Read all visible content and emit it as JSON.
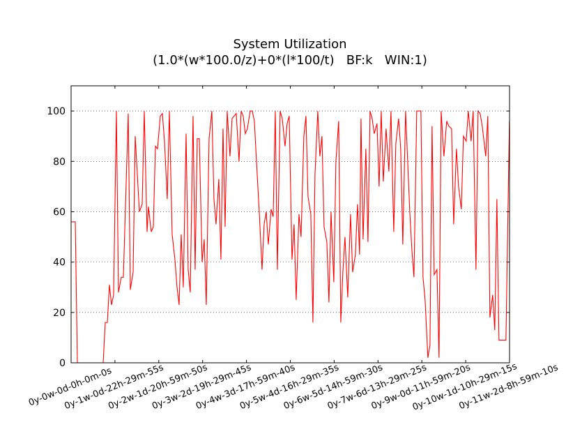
{
  "chart_data": {
    "type": "line",
    "title": "System Utilization",
    "subtitle": "(1.0*(w*100.0/z)+0*(l*100/t)   BF:k   WIN:1)",
    "color": "#ff0000",
    "grid": true,
    "xlim": [
      0,
      6857950
    ],
    "xticks": [
      {
        "value": 0,
        "label": "0y-0w-0d-0h-0m-0s"
      },
      {
        "value": 685795,
        "label": "0y-1w-0d-22h-29m-55s"
      },
      {
        "value": 1371590,
        "label": "0y-2w-1d-20h-59m-50s"
      },
      {
        "value": 2057385,
        "label": "0y-3w-2d-19h-29m-45s"
      },
      {
        "value": 2743180,
        "label": "0y-4w-3d-17h-59m-40s"
      },
      {
        "value": 3428975,
        "label": "0y-5w-4d-16h-29m-35s"
      },
      {
        "value": 4114770,
        "label": "0y-6w-5d-14h-59m-30s"
      },
      {
        "value": 4800565,
        "label": "0y-7w-6d-13h-29m-25s"
      },
      {
        "value": 5486360,
        "label": "0y-9w-0d-11h-59m-20s"
      },
      {
        "value": 6172155,
        "label": "0y-10w-1d-10h-29m-15s"
      },
      {
        "value": 6857950,
        "label": "0y-11w-2d-8h-59m-10s"
      }
    ],
    "ylim": [
      0,
      110
    ],
    "yticks": [
      0,
      20,
      40,
      60,
      80,
      100
    ],
    "x": [
      0,
      65400,
      98100,
      501400,
      534100,
      566800,
      599500,
      632200,
      664900,
      708500,
      741200,
      784800,
      817500,
      893800,
      926500,
      970100,
      1002800,
      1068200,
      1111800,
      1144500,
      1188100,
      1209900,
      1253500,
      1286200,
      1318900,
      1351600,
      1395200,
      1427900,
      1460600,
      1504200,
      1536900,
      1580500,
      1624100,
      1656800,
      1689500,
      1722200,
      1754900,
      1798500,
      1831200,
      1863900,
      1907500,
      1940200,
      1972900,
      2005600,
      2049200,
      2081900,
      2114600,
      2158200,
      2201800,
      2234500,
      2267200,
      2310800,
      2343500,
      2376200,
      2408900,
      2441600,
      2485200,
      2517900,
      2550600,
      2583300,
      2626900,
      2659600,
      2692300,
      2725000,
      2757700,
      2801300,
      2834000,
      2866700,
      2910300,
      2943000,
      2986600,
      3019300,
      3052000,
      3084700,
      3128300,
      3161000,
      3193700,
      3226400,
      3270000,
      3302700,
      3346300,
      3379000,
      3411700,
      3455300,
      3488000,
      3520700,
      3564300,
      3597000,
      3640600,
      3673300,
      3706000,
      3749600,
      3782300,
      3815000,
      3858600,
      3891300,
      3924000,
      3956700,
      4000300,
      4033000,
      4065700,
      4109300,
      4142000,
      4185600,
      4218300,
      4251000,
      4283700,
      4327300,
      4370900,
      4403600,
      4447200,
      4479900,
      4512600,
      4534400,
      4567100,
      4610700,
      4643400,
      4676100,
      4708800,
      4741500,
      4785100,
      4817800,
      4850500,
      4883200,
      4926800,
      4970400,
      5003100,
      5046700,
      5079400,
      5123000,
      5155700,
      5188400,
      5232000,
      5264700,
      5297400,
      5330100,
      5362800,
      5406400,
      5471800,
      5504500,
      5537200,
      5580800,
      5613500,
      5646200,
      5678900,
      5722500,
      5755200,
      5787900,
      5831500,
      5875100,
      5907800,
      5951400,
      5984100,
      6027700,
      6060400,
      6104000,
      6136700,
      6180300,
      6213000,
      6256600,
      6289300,
      6332900,
      6365600,
      6398300,
      6431000,
      6485500,
      6518200,
      6550900,
      6594500,
      6627200,
      6659900,
      6692600,
      6801600,
      6856100
    ],
    "values": [
      56,
      56,
      0,
      0,
      16,
      16,
      31,
      23,
      27,
      100,
      28,
      34,
      34,
      99,
      29,
      36,
      90,
      60,
      63,
      100,
      52,
      62,
      52,
      54,
      86,
      85,
      98,
      99,
      88,
      65,
      100,
      51,
      41,
      30,
      23,
      51,
      30,
      91,
      37,
      28,
      98,
      37,
      89,
      89,
      40,
      49,
      23,
      89,
      100,
      65,
      55,
      73,
      41,
      93,
      54,
      100,
      82,
      97,
      98,
      99,
      80,
      100,
      98,
      91,
      93,
      100,
      100,
      96,
      75,
      60,
      37,
      55,
      60,
      47,
      61,
      58,
      100,
      37,
      100,
      97,
      86,
      95,
      98,
      41,
      55,
      25,
      59,
      50,
      90,
      98,
      66,
      59,
      16,
      75,
      100,
      82,
      90,
      54,
      48,
      24,
      60,
      32,
      80,
      96,
      16,
      36,
      50,
      26,
      59,
      36,
      43,
      63,
      43,
      97,
      49,
      85,
      48,
      100,
      97,
      91,
      95,
      70,
      100,
      72,
      93,
      76,
      100,
      52,
      87,
      97,
      85,
      47,
      100,
      80,
      60,
      45,
      34,
      100,
      100,
      34,
      25,
      2,
      7,
      94,
      35,
      37,
      2,
      100,
      82,
      96,
      94,
      93,
      55,
      85,
      70,
      61,
      90,
      88,
      100,
      88,
      100,
      37,
      100,
      99,
      94,
      82,
      98,
      18,
      27,
      13,
      65,
      9,
      9,
      96
    ]
  }
}
